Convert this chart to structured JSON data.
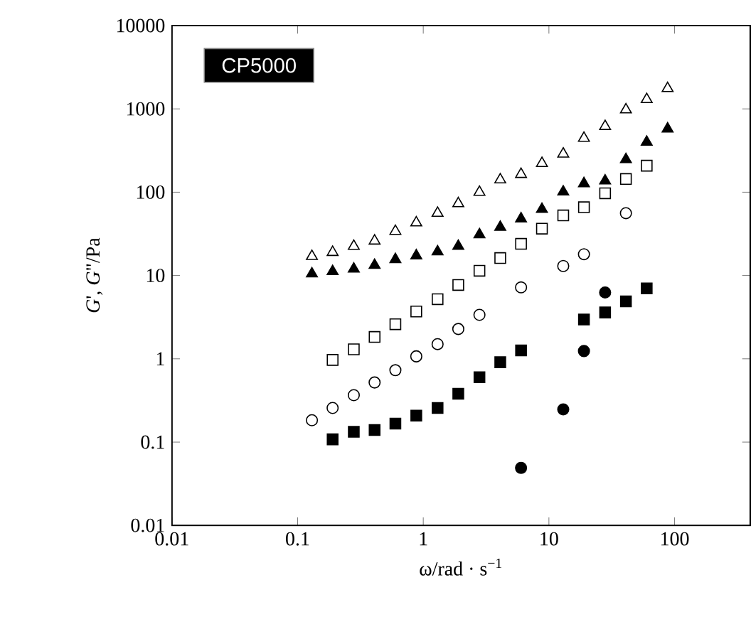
{
  "chart_data": {
    "type": "scatter",
    "xlabel": "ω/rad · s$^{−1}$",
    "ylabel": "*G*',  *G*\"/Pa",
    "annotations": [
      "CP5000"
    ],
    "log": "xy",
    "xlim": [
      0.01,
      400
    ],
    "ylim": [
      0.01,
      10000
    ],
    "xticks": [
      0.01,
      0.1,
      1,
      10,
      100
    ],
    "yticks": [
      0.01,
      0.1,
      1,
      10,
      100,
      1000,
      10000
    ],
    "grid": false,
    "series": [
      {
        "marker": "triangle",
        "color": "#ffffff",
        "x": [
          0.13,
          0.19,
          0.28,
          0.41,
          0.6,
          0.88,
          1.3,
          1.9,
          2.8,
          4.1,
          6,
          8.8,
          13,
          19,
          28,
          41,
          60,
          88
        ],
        "values": [
          17,
          19,
          22.5,
          26,
          34,
          43,
          56,
          73,
          100,
          141,
          164,
          222,
          288,
          445,
          617,
          977,
          1300,
          1760
        ]
      },
      {
        "marker": "triangle",
        "color": "#000000",
        "x": [
          0.13,
          0.19,
          0.28,
          0.41,
          0.6,
          0.88,
          1.3,
          1.9,
          2.8,
          4.1,
          6,
          8.8,
          13,
          19,
          28,
          41,
          60,
          88
        ],
        "values": [
          10.5,
          11.2,
          12,
          13.3,
          15.6,
          17.3,
          19.3,
          22.5,
          31,
          38,
          48,
          62.5,
          101,
          127,
          137,
          247,
          400,
          577
        ]
      },
      {
        "marker": "square",
        "color": "#ffffff",
        "x": [
          0.19,
          0.28,
          0.41,
          0.6,
          0.88,
          1.3,
          1.9,
          2.8,
          4.1,
          6,
          8.8,
          13,
          19,
          28,
          41,
          60
        ],
        "values": [
          0.97,
          1.3,
          1.83,
          2.6,
          3.7,
          5.2,
          7.7,
          11.4,
          16.2,
          24,
          36.5,
          52.6,
          66,
          97,
          144,
          208
        ]
      },
      {
        "marker": "circle",
        "color": "#ffffff",
        "x": [
          0.13,
          0.19,
          0.28,
          0.41,
          0.6,
          0.88,
          1.3,
          1.9,
          2.8,
          6,
          13,
          19,
          41
        ],
        "values": [
          0.183,
          0.257,
          0.366,
          0.52,
          0.73,
          1.07,
          1.5,
          2.28,
          3.37,
          7.2,
          13,
          18,
          56
        ]
      },
      {
        "marker": "square",
        "color": "#000000",
        "x": [
          0.19,
          0.28,
          0.41,
          0.6,
          0.88,
          1.3,
          1.9,
          2.8,
          4.1,
          6,
          19,
          28,
          41,
          60
        ],
        "values": [
          0.108,
          0.133,
          0.14,
          0.167,
          0.208,
          0.257,
          0.38,
          0.6,
          0.91,
          1.26,
          2.96,
          3.6,
          4.9,
          7
        ]
      },
      {
        "marker": "circle",
        "color": "#000000",
        "x": [
          6,
          13,
          19,
          28
        ],
        "values": [
          0.049,
          0.247,
          1.24,
          6.25
        ]
      }
    ]
  }
}
